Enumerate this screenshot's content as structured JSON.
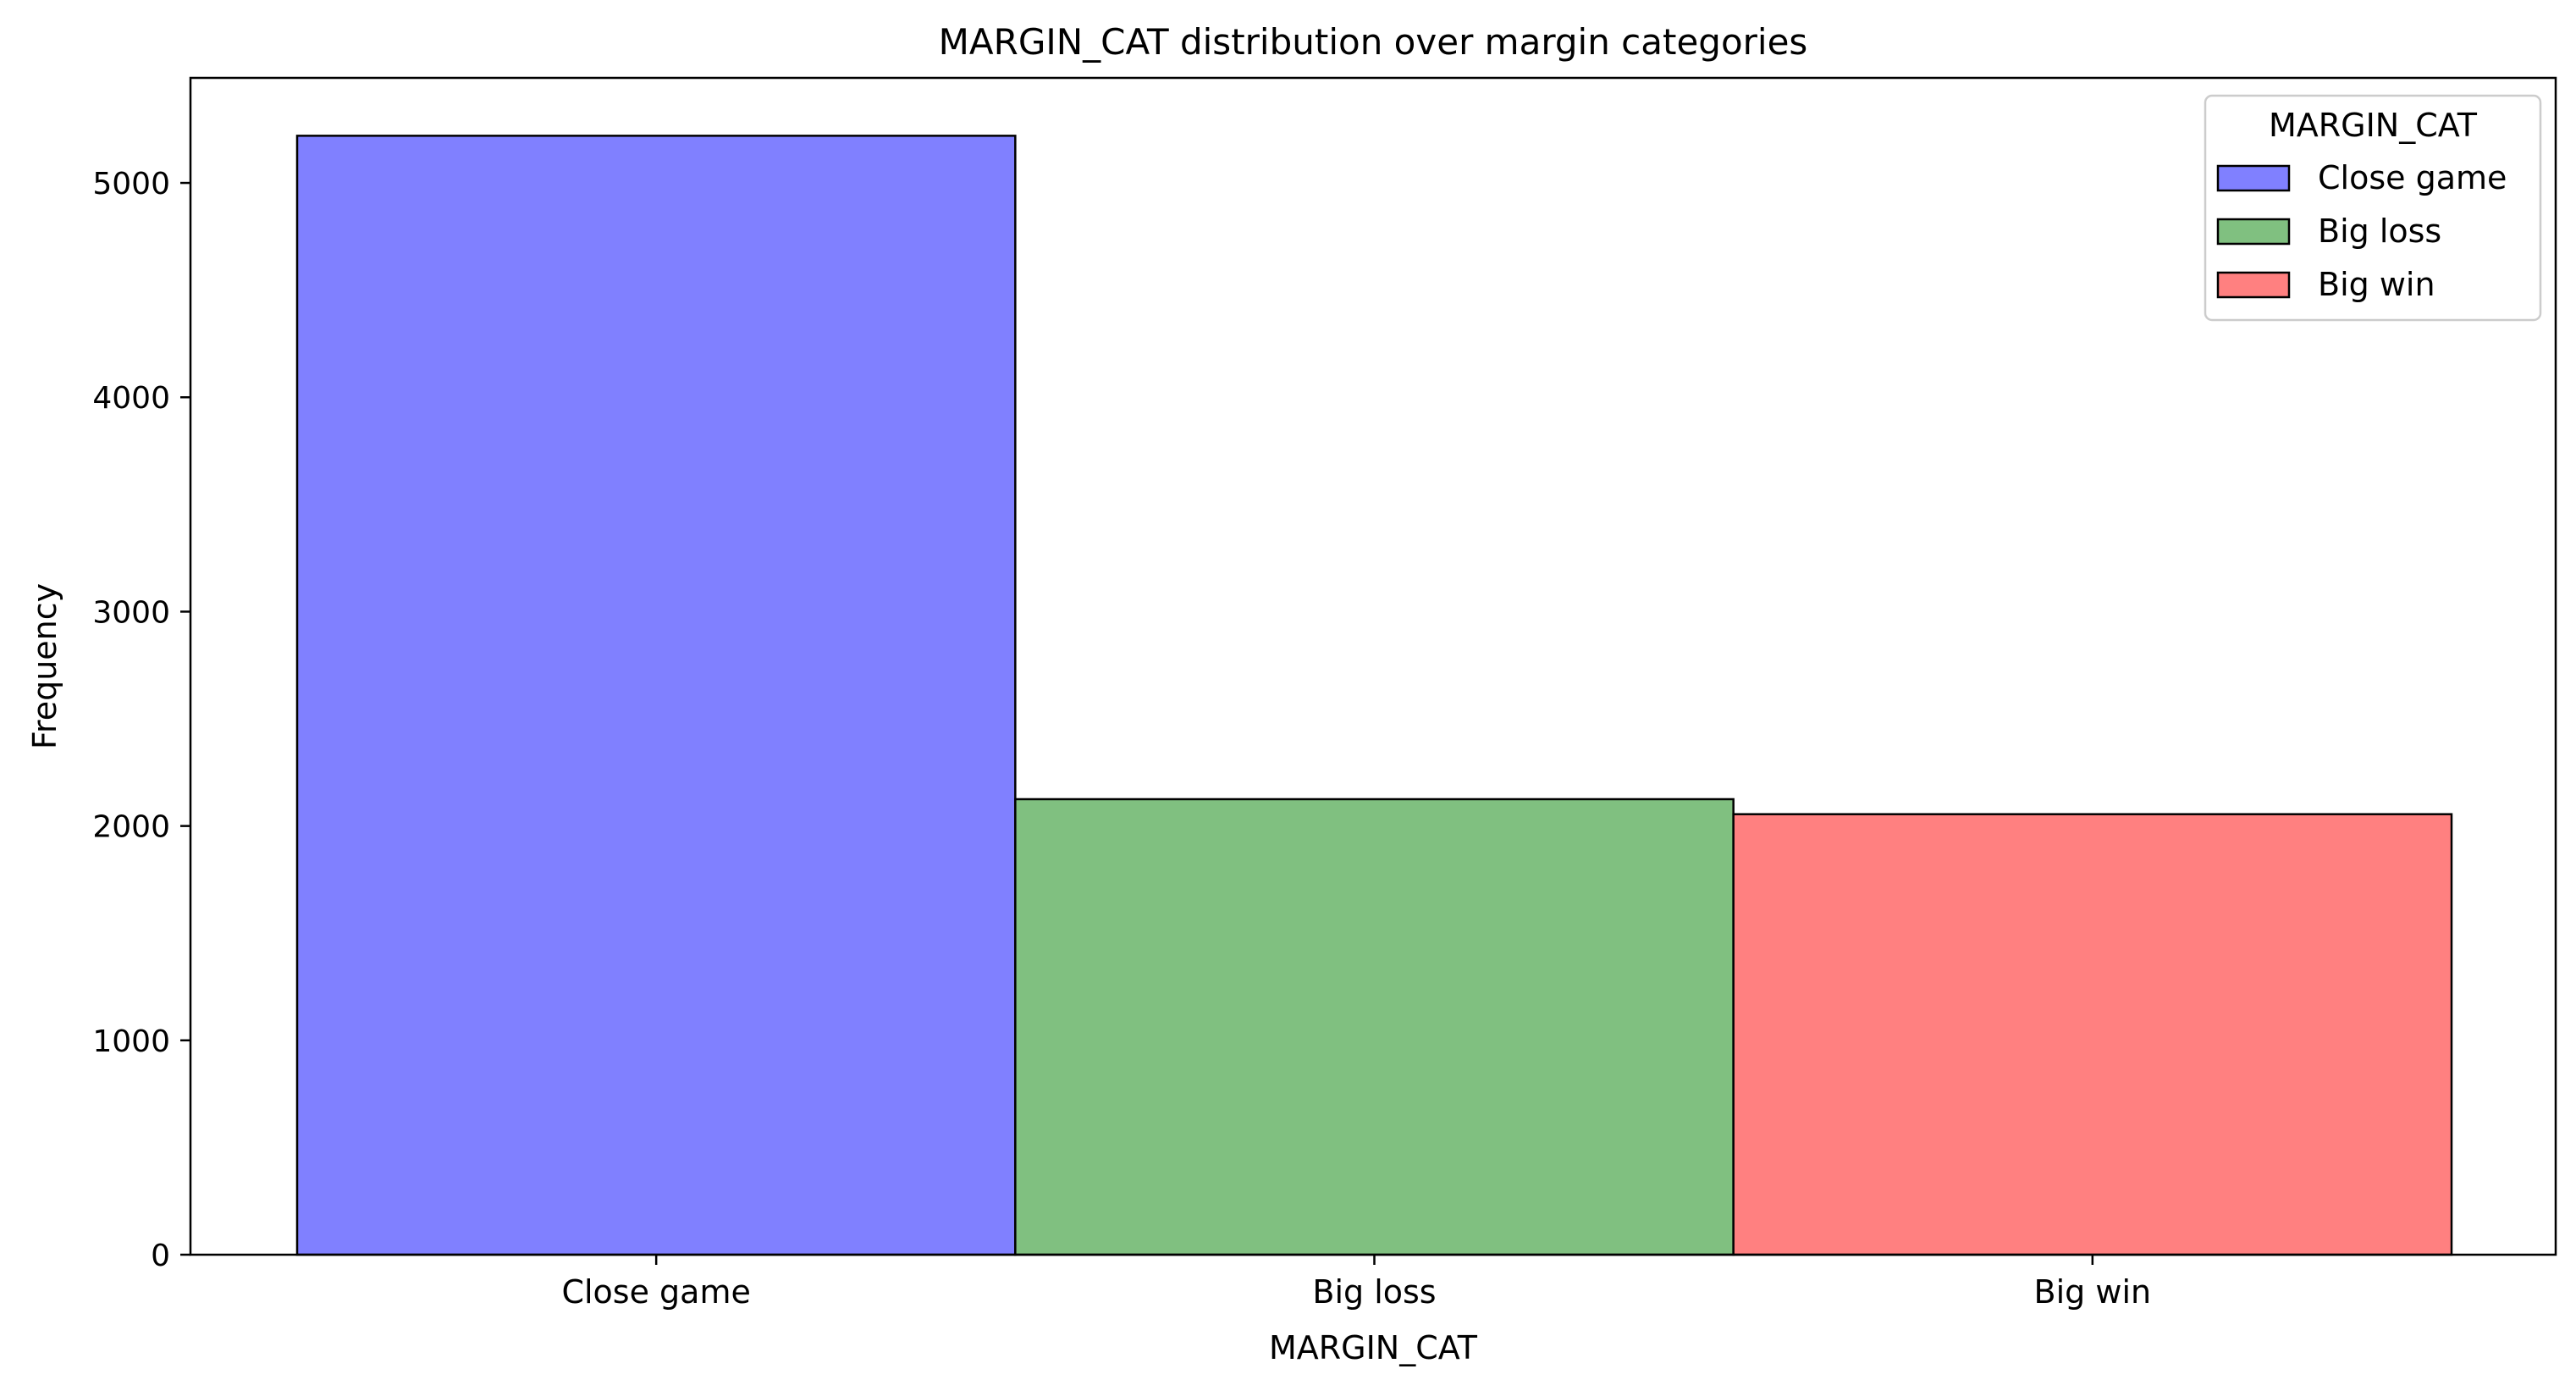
{
  "chart_data": {
    "type": "bar",
    "title": "MARGIN_CAT distribution over margin categories",
    "xlabel": "MARGIN_CAT",
    "ylabel": "Frequency",
    "categories": [
      "Close game",
      "Big loss",
      "Big win"
    ],
    "values": [
      5220,
      2125,
      2055
    ],
    "colors": [
      "#8080ff",
      "#80c080",
      "#ff8080"
    ],
    "ylim": [
      0,
      5490
    ],
    "yticks": [
      0,
      1000,
      2000,
      3000,
      4000,
      5000
    ],
    "grid": false,
    "legend": {
      "title": "MARGIN_CAT",
      "position": "top-right",
      "entries": [
        "Close game",
        "Big loss",
        "Big win"
      ]
    }
  }
}
